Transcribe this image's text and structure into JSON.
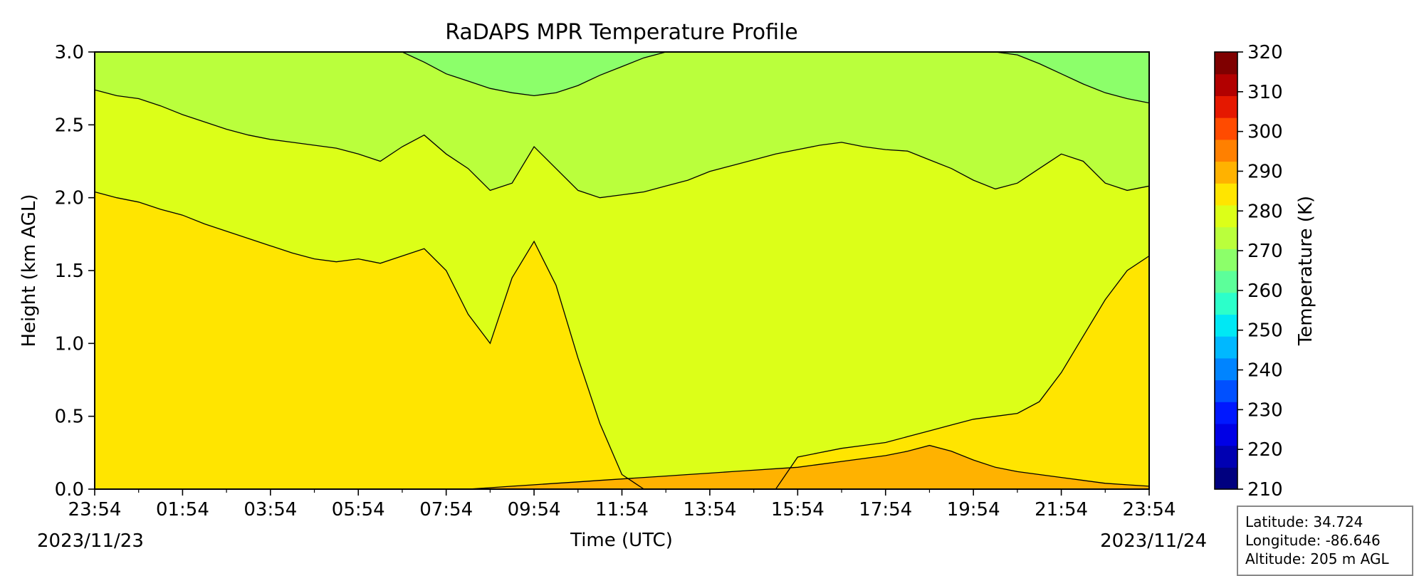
{
  "chart_data": {
    "type": "heatmap",
    "subtype": "filled-contour",
    "title": "RaDAPS MPR Temperature Profile",
    "xlabel": "Time (UTC)",
    "ylabel": "Height (km AGL)",
    "x_ticks": [
      "23:54",
      "01:54",
      "03:54",
      "05:54",
      "07:54",
      "09:54",
      "11:54",
      "13:54",
      "15:54",
      "17:54",
      "19:54",
      "21:54",
      "23:54"
    ],
    "x_start_date": "2023/11/23",
    "x_end_date": "2023/11/24",
    "ylim": [
      0.0,
      3.0
    ],
    "y_ticks": [
      "0.0",
      "0.5",
      "1.0",
      "1.5",
      "2.0",
      "2.5",
      "3.0"
    ],
    "colorbar": {
      "label": "Temperature (K)",
      "range": [
        210,
        320
      ],
      "step": 5,
      "ticks": [
        210,
        220,
        230,
        240,
        250,
        260,
        270,
        280,
        290,
        300,
        310,
        320
      ],
      "colors": [
        "#00007f",
        "#0000b2",
        "#0000e5",
        "#0018ff",
        "#0050ff",
        "#0084ff",
        "#00b8ff",
        "#00e8f4",
        "#2cffca",
        "#5cff9a",
        "#8cff6a",
        "#baff3c",
        "#dcff18",
        "#ffe500",
        "#ffb200",
        "#ff8000",
        "#ff4b00",
        "#e51800",
        "#b20000",
        "#7f0000"
      ]
    },
    "contour_levels": [
      {
        "level_K": 290,
        "heights_km": [
          0.0,
          0.0,
          0.0,
          0.0,
          0.0,
          0.0,
          0.0,
          0.0,
          0.0,
          0.0,
          0.0,
          0.0,
          0.0,
          0.0,
          0.0,
          0.0,
          0.0,
          0.0,
          0.01,
          0.02,
          0.03,
          0.04,
          0.05,
          0.06,
          0.07,
          0.08,
          0.09,
          0.1,
          0.11,
          0.12,
          0.13,
          0.14,
          0.15,
          0.17,
          0.19,
          0.21,
          0.23,
          0.26,
          0.3,
          0.26,
          0.2,
          0.15,
          0.12,
          0.1,
          0.08,
          0.06,
          0.04,
          0.03,
          0.02
        ]
      },
      {
        "level_K": 280,
        "heights_km": [
          2.04,
          2.0,
          1.97,
          1.92,
          1.88,
          1.82,
          1.77,
          1.72,
          1.67,
          1.62,
          1.58,
          1.56,
          1.58,
          1.55,
          1.6,
          1.65,
          1.5,
          1.2,
          1.0,
          1.45,
          1.7,
          1.4,
          0.9,
          0.45,
          0.1,
          0.0,
          0.0,
          0.0,
          0.0,
          0.0,
          0.0,
          0.0,
          0.22,
          0.25,
          0.28,
          0.3,
          0.32,
          0.36,
          0.4,
          0.44,
          0.48,
          0.5,
          0.52,
          0.6,
          0.8,
          1.05,
          1.3,
          1.5,
          1.6
        ]
      },
      {
        "level_K": 270,
        "heights_km": [
          2.74,
          2.7,
          2.68,
          2.63,
          2.57,
          2.52,
          2.47,
          2.43,
          2.4,
          2.38,
          2.36,
          2.34,
          2.3,
          2.25,
          2.35,
          2.43,
          2.3,
          2.2,
          2.05,
          2.1,
          2.35,
          2.2,
          2.05,
          2.0,
          2.02,
          2.04,
          2.08,
          2.12,
          2.18,
          2.22,
          2.26,
          2.3,
          2.33,
          2.36,
          2.38,
          2.35,
          2.33,
          2.32,
          2.26,
          2.2,
          2.12,
          2.06,
          2.1,
          2.2,
          2.3,
          2.25,
          2.1,
          2.05,
          2.08
        ]
      },
      {
        "level_K": 260,
        "heights_km": [
          3.0,
          3.0,
          3.0,
          3.0,
          3.0,
          3.0,
          3.0,
          3.0,
          3.0,
          3.0,
          3.0,
          3.0,
          3.0,
          3.0,
          3.0,
          2.93,
          2.85,
          2.8,
          2.75,
          2.72,
          2.7,
          2.72,
          2.77,
          2.84,
          2.9,
          2.96,
          3.0,
          3.0,
          3.0,
          3.0,
          3.0,
          3.0,
          3.0,
          3.0,
          3.0,
          3.0,
          3.0,
          3.0,
          3.0,
          3.0,
          3.0,
          3.0,
          2.98,
          2.92,
          2.85,
          2.78,
          2.72,
          2.68,
          2.65
        ]
      }
    ],
    "fill_colors": {
      "below_290": "#ffb200",
      "280_to_290": "#ffe500",
      "270_to_280": "#dcff18",
      "260_to_270": "#baff3c",
      "above_260": "#8cff6a"
    },
    "grid": false,
    "legend": "colorbar-right"
  },
  "info_box": {
    "latitude": "Latitude: 34.724",
    "longitude": "Longitude: -86.646",
    "altitude": "Altitude: 205 m AGL"
  }
}
